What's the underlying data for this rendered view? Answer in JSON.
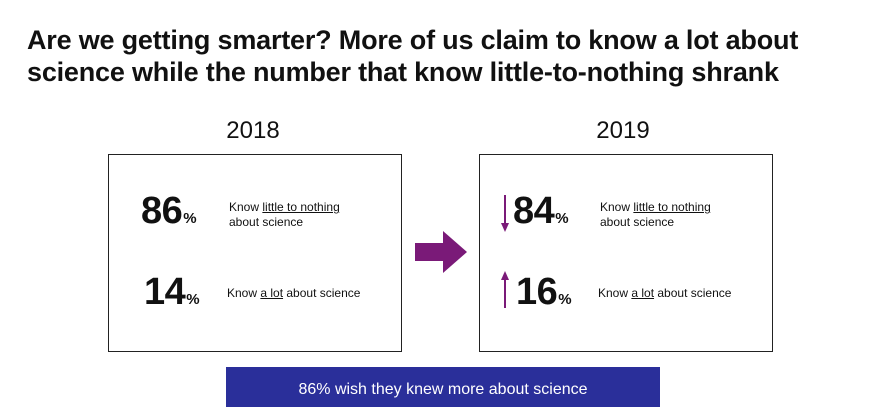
{
  "title": "Are we getting smarter? More of us claim to know a lot about science while the number that know little-to-nothing shrank",
  "years": {
    "left": "2018",
    "right": "2019"
  },
  "panel_2018": {
    "stat_little": {
      "value": "86",
      "unit": "%",
      "prefix": "Know ",
      "underlined": "little to nothing",
      "suffix": "",
      "line2": "about science"
    },
    "stat_lot": {
      "value": "14",
      "unit": "%",
      "prefix": "Know ",
      "underlined": "a lot",
      "suffix": " about science"
    }
  },
  "panel_2019": {
    "stat_little": {
      "value": "84",
      "unit": "%",
      "prefix": "Know ",
      "underlined": "little to nothing",
      "suffix": "",
      "line2": "about science",
      "trend": "down"
    },
    "stat_lot": {
      "value": "16",
      "unit": "%",
      "prefix": "Know ",
      "underlined": "a lot",
      "suffix": " about science",
      "trend": "up"
    }
  },
  "banner": "86% wish they knew more about science",
  "colors": {
    "accent_purple": "#7a1a78",
    "banner_blue": "#2a2f9a",
    "text": "#111111"
  },
  "icons": {
    "transition": "right-arrow-icon",
    "decrease": "down-arrow-icon",
    "increase": "up-arrow-icon"
  }
}
